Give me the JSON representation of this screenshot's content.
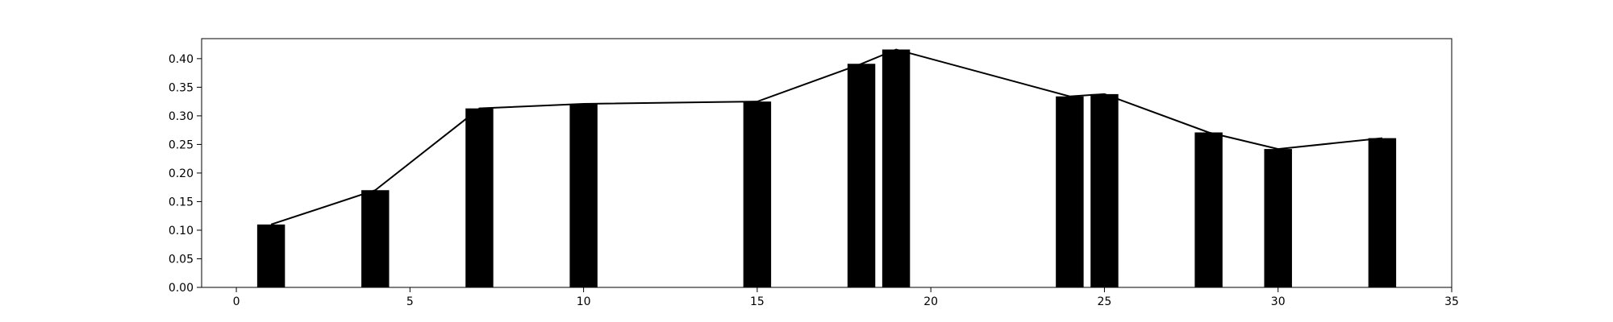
{
  "chart_data": {
    "type": "bar",
    "title": "",
    "xlabel": "",
    "ylabel": "",
    "xlim": [
      -1,
      35
    ],
    "ylim": [
      0,
      0.435
    ],
    "xticks": [
      0,
      5,
      10,
      15,
      20,
      25,
      30,
      35
    ],
    "xtick_labels": [
      "0",
      "5",
      "10",
      "15",
      "20",
      "25",
      "30",
      "35"
    ],
    "yticks": [
      0.0,
      0.05,
      0.1,
      0.15,
      0.2,
      0.25,
      0.3,
      0.35,
      0.4
    ],
    "ytick_labels": [
      "0.00",
      "0.05",
      "0.10",
      "0.15",
      "0.20",
      "0.25",
      "0.30",
      "0.35",
      "0.40"
    ],
    "grid": false,
    "legend": "none",
    "bar_width": 0.8,
    "series": [
      {
        "type": "bar",
        "x": [
          1,
          4,
          7,
          10,
          15,
          18,
          19,
          24,
          25,
          28,
          30,
          33
        ],
        "values": [
          0.11,
          0.17,
          0.313,
          0.321,
          0.325,
          0.391,
          0.416,
          0.334,
          0.338,
          0.271,
          0.242,
          0.261
        ]
      },
      {
        "type": "line",
        "x": [
          1,
          4,
          7,
          10,
          15,
          18,
          19,
          24,
          25,
          28,
          30,
          33
        ],
        "values": [
          0.11,
          0.17,
          0.313,
          0.321,
          0.325,
          0.391,
          0.416,
          0.334,
          0.338,
          0.271,
          0.242,
          0.261
        ]
      }
    ],
    "colors": {
      "bar": "#000000",
      "line": "#000000",
      "axes": "#000000"
    }
  }
}
